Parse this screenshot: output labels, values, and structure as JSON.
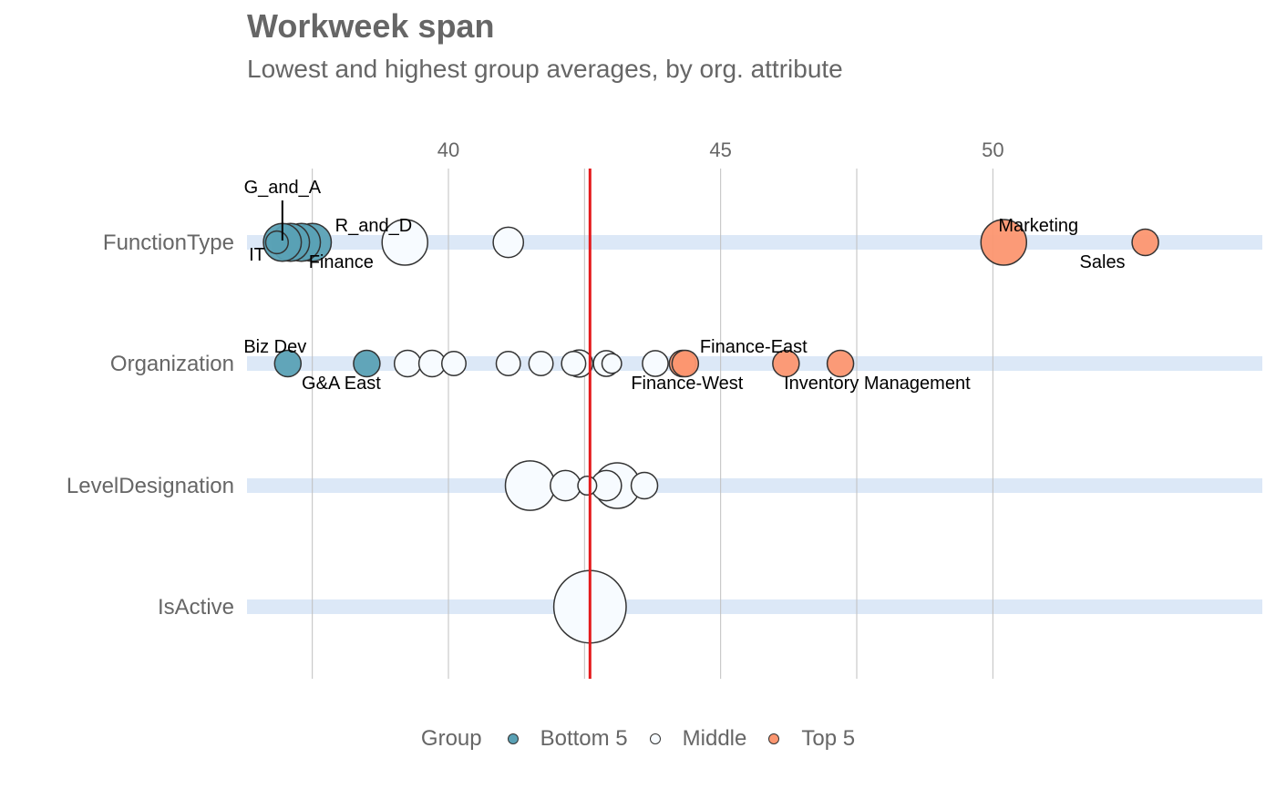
{
  "title": "Workweek span",
  "subtitle": "Lowest and highest group averages, by org. attribute",
  "legend": {
    "title": "Group",
    "items": [
      {
        "label": "Bottom 5",
        "color": "#5aa1b5"
      },
      {
        "label": "Middle",
        "color": "#f7fbff"
      },
      {
        "label": "Top 5",
        "color": "#fc9670"
      }
    ]
  },
  "colors": {
    "track": "#dce8f7",
    "grid": "#bfbfbf",
    "reference_line": "#e41a1c",
    "point_stroke": "#333333"
  },
  "chart_data": {
    "type": "scatter",
    "title": "Workweek span",
    "subtitle": "Lowest and highest group averages, by org. attribute",
    "x_axis_position": "top",
    "xlim": [
      36.3,
      54.95
    ],
    "x_ticks": [
      40,
      45,
      50
    ],
    "categories": [
      "FunctionType",
      "Organization",
      "LevelDesignation",
      "IsActive"
    ],
    "reference_value": 42.6,
    "grid": true,
    "legend_position": "bottom",
    "points": [
      {
        "category": "FunctionType",
        "x": 41.1,
        "group": "Middle",
        "size": 3
      },
      {
        "category": "FunctionType",
        "x": 39.2,
        "group": "Middle",
        "size": 5
      },
      {
        "category": "FunctionType",
        "x": 37.5,
        "group": "Bottom 5",
        "size": 4,
        "label": "R_and_D"
      },
      {
        "category": "FunctionType",
        "x": 37.3,
        "group": "Bottom 5",
        "size": 4,
        "label": "Finance"
      },
      {
        "category": "FunctionType",
        "x": 37.1,
        "group": "Bottom 5",
        "size": 4
      },
      {
        "category": "FunctionType",
        "x": 36.95,
        "group": "Bottom 5",
        "size": 4,
        "label": "G_and_A"
      },
      {
        "category": "FunctionType",
        "x": 36.85,
        "group": "Bottom 5",
        "size": 2,
        "label": "IT"
      },
      {
        "category": "FunctionType",
        "x": 50.2,
        "group": "Top 5",
        "size": 5,
        "label": "Marketing"
      },
      {
        "category": "FunctionType",
        "x": 52.8,
        "group": "Top 5",
        "size": 2.5,
        "label": "Sales"
      },
      {
        "category": "Organization",
        "x": 37.05,
        "group": "Bottom 5",
        "size": 2.5,
        "label": "Biz Dev"
      },
      {
        "category": "Organization",
        "x": 38.5,
        "group": "Bottom 5",
        "size": 2.5,
        "label": "G&A East"
      },
      {
        "category": "Organization",
        "x": 39.25,
        "group": "Middle",
        "size": 2.5
      },
      {
        "category": "Organization",
        "x": 39.7,
        "group": "Middle",
        "size": 2.5
      },
      {
        "category": "Organization",
        "x": 40.1,
        "group": "Middle",
        "size": 2.2
      },
      {
        "category": "Organization",
        "x": 41.1,
        "group": "Middle",
        "size": 2.2
      },
      {
        "category": "Organization",
        "x": 41.7,
        "group": "Middle",
        "size": 2.2
      },
      {
        "category": "Organization",
        "x": 42.3,
        "group": "Middle",
        "size": 2.2
      },
      {
        "category": "Organization",
        "x": 42.4,
        "group": "Middle",
        "size": 2.6
      },
      {
        "category": "Organization",
        "x": 42.9,
        "group": "Middle",
        "size": 2.4
      },
      {
        "category": "Organization",
        "x": 43.0,
        "group": "Middle",
        "size": 1.6
      },
      {
        "category": "Organization",
        "x": 43.8,
        "group": "Middle",
        "size": 2.4
      },
      {
        "category": "Organization",
        "x": 44.3,
        "group": "Top 5",
        "size": 2.5,
        "label": "Finance-West"
      },
      {
        "category": "Organization",
        "x": 44.35,
        "group": "Top 5",
        "size": 2.5,
        "label": "Finance-East"
      },
      {
        "category": "Organization",
        "x": 46.2,
        "group": "Top 5",
        "size": 2.5,
        "label": "Inventory Management"
      },
      {
        "category": "Organization",
        "x": 47.2,
        "group": "Top 5",
        "size": 2.5
      },
      {
        "category": "LevelDesignation",
        "x": 41.5,
        "group": "Middle",
        "size": 5.5
      },
      {
        "category": "LevelDesignation",
        "x": 42.15,
        "group": "Middle",
        "size": 3
      },
      {
        "category": "LevelDesignation",
        "x": 43.1,
        "group": "Middle",
        "size": 5
      },
      {
        "category": "LevelDesignation",
        "x": 42.55,
        "group": "Middle",
        "size": 1.5
      },
      {
        "category": "LevelDesignation",
        "x": 42.9,
        "group": "Middle",
        "size": 3
      },
      {
        "category": "LevelDesignation",
        "x": 43.6,
        "group": "Middle",
        "size": 2.5
      },
      {
        "category": "IsActive",
        "x": 42.6,
        "group": "Middle",
        "size": 8.5
      }
    ]
  }
}
